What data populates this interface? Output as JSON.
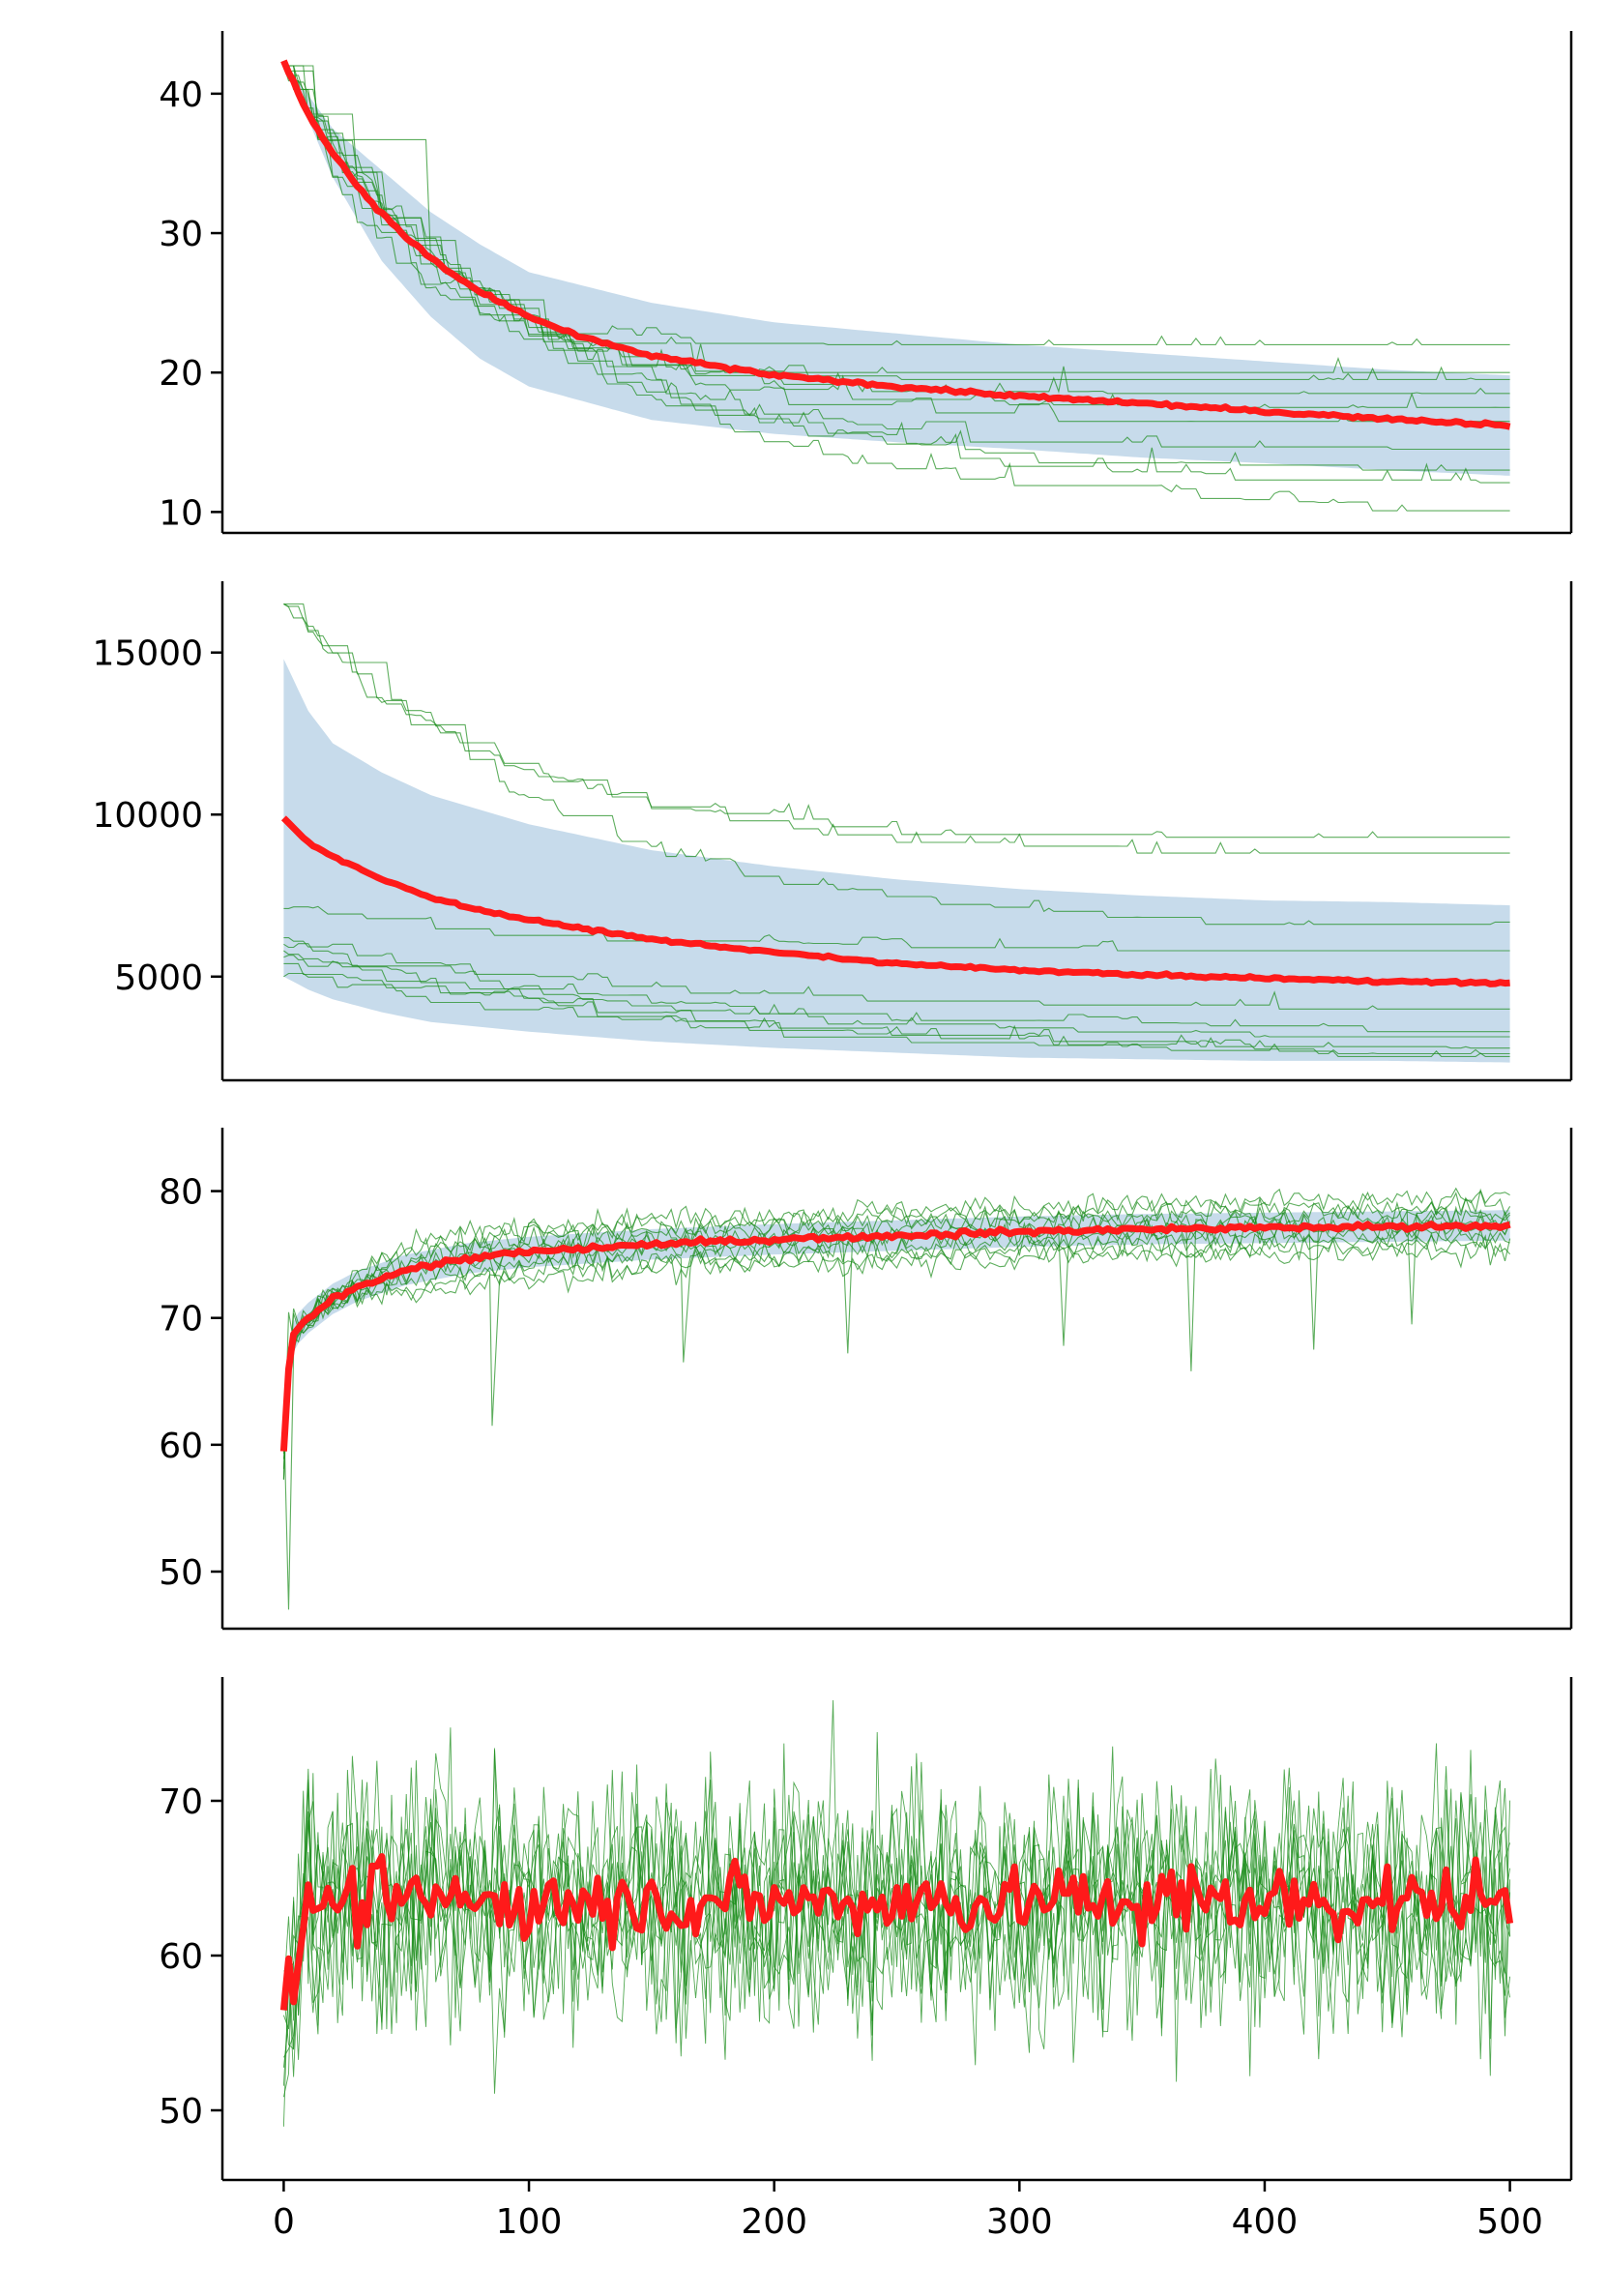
{
  "figure": {
    "colors": {
      "mean": "#ff1a1a",
      "runs": "#1a8c1a",
      "band": "#c7dbeb",
      "axis": "#000000"
    }
  },
  "chart_data": [
    {
      "type": "line",
      "panel": 1,
      "x_range": [
        0,
        500
      ],
      "ylim": [
        8.5,
        44.5
      ],
      "yticks": [
        10,
        20,
        30,
        40
      ],
      "ytick_labels": [
        "10",
        "20",
        "30",
        "40"
      ],
      "xticks_shown": false,
      "grid": false,
      "legend": "none",
      "mean": {
        "x": [
          0,
          5,
          10,
          20,
          30,
          40,
          50,
          60,
          70,
          80,
          100,
          120,
          150,
          200,
          250,
          300,
          350,
          400,
          450,
          500
        ],
        "y": [
          42.3,
          40.5,
          38.5,
          35.8,
          33.4,
          31.4,
          29.7,
          28.2,
          26.9,
          25.8,
          24.0,
          22.6,
          21.2,
          19.8,
          19.0,
          18.3,
          17.8,
          17.2,
          16.7,
          16.2
        ]
      },
      "band": {
        "x": [
          0,
          20,
          40,
          60,
          80,
          100,
          150,
          200,
          250,
          300,
          350,
          400,
          450,
          500
        ],
        "upper": [
          42.3,
          37.5,
          34.5,
          31.5,
          29.2,
          27.2,
          25.0,
          23.6,
          22.8,
          22.0,
          21.4,
          20.8,
          20.2,
          19.8
        ],
        "lower": [
          42.3,
          34.0,
          28.0,
          24.0,
          21.0,
          19.0,
          16.6,
          15.6,
          15.0,
          14.5,
          13.9,
          13.5,
          13.0,
          12.6
        ]
      },
      "runs": {
        "count": 10,
        "final_values": [
          22,
          20,
          19.5,
          18.5,
          17.5,
          16.5,
          14.5,
          13,
          12,
          10
        ]
      }
    },
    {
      "type": "line",
      "panel": 2,
      "x_range": [
        0,
        500
      ],
      "ylim": [
        1800,
        17200
      ],
      "yticks": [
        5000,
        10000,
        15000
      ],
      "ytick_labels": [
        "5000",
        "10000",
        "15000"
      ],
      "xticks_shown": false,
      "grid": false,
      "legend": "none",
      "mean": {
        "x": [
          0,
          5,
          10,
          20,
          40,
          60,
          80,
          100,
          150,
          200,
          250,
          300,
          350,
          400,
          450,
          500
        ],
        "y": [
          9900,
          9500,
          9150,
          8700,
          8000,
          7450,
          7050,
          6750,
          6150,
          5750,
          5400,
          5200,
          5050,
          4950,
          4850,
          4800
        ]
      },
      "band": {
        "x": [
          0,
          10,
          20,
          40,
          60,
          100,
          150,
          200,
          250,
          300,
          350,
          400,
          450,
          500
        ],
        "upper": [
          14800,
          13200,
          12200,
          11300,
          10600,
          9700,
          8900,
          8400,
          8000,
          7700,
          7500,
          7350,
          7300,
          7200
        ],
        "lower": [
          5000,
          4600,
          4300,
          3900,
          3600,
          3300,
          3000,
          2800,
          2650,
          2500,
          2450,
          2400,
          2400,
          2350
        ]
      },
      "runs": {
        "count": 10,
        "start_values": [
          16500,
          16500,
          16500,
          7100,
          6200,
          6000,
          5800,
          5600,
          5400,
          5000
        ],
        "final_values": [
          9300,
          8800,
          6500,
          5800,
          4000,
          3300,
          3000,
          2600,
          2400,
          2300
        ]
      }
    },
    {
      "type": "line",
      "panel": 3,
      "x_range": [
        0,
        500
      ],
      "ylim": [
        45.5,
        85
      ],
      "yticks": [
        50,
        60,
        70,
        80
      ],
      "ytick_labels": [
        "50",
        "60",
        "70",
        "80"
      ],
      "xticks_shown": false,
      "grid": false,
      "legend": "none",
      "mean": {
        "x": [
          0,
          1,
          3,
          5,
          10,
          20,
          30,
          50,
          75,
          100,
          150,
          200,
          250,
          300,
          350,
          400,
          450,
          500
        ],
        "y": [
          59.5,
          64,
          68,
          69,
          70,
          71.5,
          72.5,
          73.8,
          74.7,
          75.2,
          75.8,
          76.2,
          76.5,
          76.8,
          77,
          77.1,
          77.2,
          77.3
        ]
      },
      "band": {
        "half_width": 1.2
      },
      "runs": {
        "count": 10,
        "spikes": [
          {
            "x": 2,
            "y": 47
          },
          {
            "x": 85,
            "y": 61.5
          },
          {
            "x": 163,
            "y": 66.5
          },
          {
            "x": 230,
            "y": 67.2
          },
          {
            "x": 318,
            "y": 67.8
          },
          {
            "x": 370,
            "y": 65.8
          },
          {
            "x": 420,
            "y": 67.5
          },
          {
            "x": 460,
            "y": 69.5
          }
        ]
      }
    },
    {
      "type": "line",
      "panel": 4,
      "x_range": [
        0,
        500
      ],
      "ylim": [
        45.5,
        78
      ],
      "yticks": [
        50,
        60,
        70
      ],
      "ytick_labels": [
        "50",
        "60",
        "70"
      ],
      "xticks": [
        0,
        100,
        200,
        300,
        400,
        500
      ],
      "xtick_labels": [
        "0",
        "100",
        "200",
        "300",
        "400",
        "500"
      ],
      "xticks_shown": true,
      "grid": false,
      "legend": "none",
      "mean": {
        "start": 55.5,
        "level": 63.5,
        "noise": 1.6
      },
      "runs": {
        "count": 10,
        "spread": 5.5,
        "range": [
          47,
          76.5
        ]
      }
    }
  ]
}
